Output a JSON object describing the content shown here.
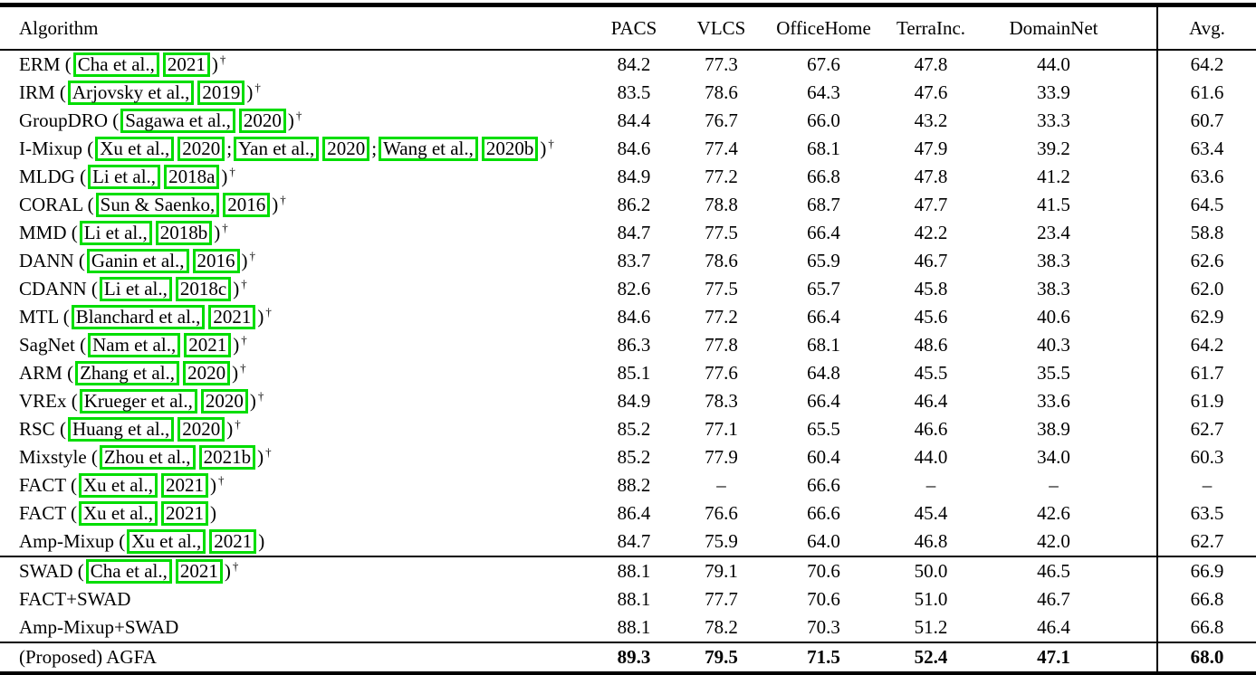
{
  "colors": {
    "citation_box": "#00dd00",
    "rule": "#000000",
    "background": "#ffffff",
    "text": "#000000"
  },
  "table": {
    "dagger_symbol": "†",
    "missing_value": "–",
    "header": [
      "Algorithm",
      "PACS",
      "VLCS",
      "OfficeHome",
      "TerraInc.",
      "DomainNet",
      "Avg."
    ],
    "rows": [
      {
        "algorithm": "ERM",
        "parts": [
          {
            "t": "text",
            "v": "ERM ("
          },
          {
            "t": "cite",
            "v": "Cha et al.,"
          },
          {
            "t": "cite",
            "v": "2021"
          },
          {
            "t": "text",
            "v": ")"
          }
        ],
        "dagger": true,
        "values": [
          "84.2",
          "77.3",
          "67.6",
          "47.8",
          "44.0",
          "64.2"
        ],
        "bold": false,
        "rule_above": false
      },
      {
        "algorithm": "IRM",
        "parts": [
          {
            "t": "text",
            "v": "IRM ("
          },
          {
            "t": "cite",
            "v": "Arjovsky et al.,"
          },
          {
            "t": "cite",
            "v": "2019"
          },
          {
            "t": "text",
            "v": ")"
          }
        ],
        "dagger": true,
        "values": [
          "83.5",
          "78.6",
          "64.3",
          "47.6",
          "33.9",
          "61.6"
        ],
        "bold": false,
        "rule_above": false
      },
      {
        "algorithm": "GroupDRO",
        "parts": [
          {
            "t": "text",
            "v": "GroupDRO ("
          },
          {
            "t": "cite",
            "v": "Sagawa et al.,"
          },
          {
            "t": "cite",
            "v": "2020"
          },
          {
            "t": "text",
            "v": ")"
          }
        ],
        "dagger": true,
        "values": [
          "84.4",
          "76.7",
          "66.0",
          "43.2",
          "33.3",
          "60.7"
        ],
        "bold": false,
        "rule_above": false
      },
      {
        "algorithm": "I-Mixup",
        "parts": [
          {
            "t": "text",
            "v": "I-Mixup ("
          },
          {
            "t": "cite",
            "v": "Xu et al.,"
          },
          {
            "t": "cite",
            "v": "2020"
          },
          {
            "t": "text",
            "v": ";"
          },
          {
            "t": "cite",
            "v": "Yan et al.,"
          },
          {
            "t": "cite",
            "v": "2020"
          },
          {
            "t": "text",
            "v": ";"
          },
          {
            "t": "cite",
            "v": "Wang et al.,"
          },
          {
            "t": "cite",
            "v": "2020b"
          },
          {
            "t": "text",
            "v": ")"
          }
        ],
        "dagger": true,
        "values": [
          "84.6",
          "77.4",
          "68.1",
          "47.9",
          "39.2",
          "63.4"
        ],
        "bold": false,
        "rule_above": false
      },
      {
        "algorithm": "MLDG",
        "parts": [
          {
            "t": "text",
            "v": "MLDG ("
          },
          {
            "t": "cite",
            "v": "Li et al.,"
          },
          {
            "t": "cite",
            "v": "2018a"
          },
          {
            "t": "text",
            "v": ")"
          }
        ],
        "dagger": true,
        "values": [
          "84.9",
          "77.2",
          "66.8",
          "47.8",
          "41.2",
          "63.6"
        ],
        "bold": false,
        "rule_above": false
      },
      {
        "algorithm": "CORAL",
        "parts": [
          {
            "t": "text",
            "v": "CORAL ("
          },
          {
            "t": "cite",
            "v": "Sun & Saenko,"
          },
          {
            "t": "cite",
            "v": "2016"
          },
          {
            "t": "text",
            "v": ")"
          }
        ],
        "dagger": true,
        "values": [
          "86.2",
          "78.8",
          "68.7",
          "47.7",
          "41.5",
          "64.5"
        ],
        "bold": false,
        "rule_above": false
      },
      {
        "algorithm": "MMD",
        "parts": [
          {
            "t": "text",
            "v": "MMD ("
          },
          {
            "t": "cite",
            "v": "Li et al.,"
          },
          {
            "t": "cite",
            "v": "2018b"
          },
          {
            "t": "text",
            "v": ")"
          }
        ],
        "dagger": true,
        "values": [
          "84.7",
          "77.5",
          "66.4",
          "42.2",
          "23.4",
          "58.8"
        ],
        "bold": false,
        "rule_above": false
      },
      {
        "algorithm": "DANN",
        "parts": [
          {
            "t": "text",
            "v": "DANN ("
          },
          {
            "t": "cite",
            "v": "Ganin et al.,"
          },
          {
            "t": "cite",
            "v": "2016"
          },
          {
            "t": "text",
            "v": ")"
          }
        ],
        "dagger": true,
        "values": [
          "83.7",
          "78.6",
          "65.9",
          "46.7",
          "38.3",
          "62.6"
        ],
        "bold": false,
        "rule_above": false
      },
      {
        "algorithm": "CDANN",
        "parts": [
          {
            "t": "text",
            "v": "CDANN ("
          },
          {
            "t": "cite",
            "v": "Li et al.,"
          },
          {
            "t": "cite",
            "v": "2018c"
          },
          {
            "t": "text",
            "v": ")"
          }
        ],
        "dagger": true,
        "values": [
          "82.6",
          "77.5",
          "65.7",
          "45.8",
          "38.3",
          "62.0"
        ],
        "bold": false,
        "rule_above": false
      },
      {
        "algorithm": "MTL",
        "parts": [
          {
            "t": "text",
            "v": "MTL ("
          },
          {
            "t": "cite",
            "v": "Blanchard et al.,"
          },
          {
            "t": "cite",
            "v": "2021"
          },
          {
            "t": "text",
            "v": ")"
          }
        ],
        "dagger": true,
        "values": [
          "84.6",
          "77.2",
          "66.4",
          "45.6",
          "40.6",
          "62.9"
        ],
        "bold": false,
        "rule_above": false
      },
      {
        "algorithm": "SagNet",
        "parts": [
          {
            "t": "text",
            "v": "SagNet ("
          },
          {
            "t": "cite",
            "v": "Nam et al.,"
          },
          {
            "t": "cite",
            "v": "2021"
          },
          {
            "t": "text",
            "v": ")"
          }
        ],
        "dagger": true,
        "values": [
          "86.3",
          "77.8",
          "68.1",
          "48.6",
          "40.3",
          "64.2"
        ],
        "bold": false,
        "rule_above": false
      },
      {
        "algorithm": "ARM",
        "parts": [
          {
            "t": "text",
            "v": "ARM ("
          },
          {
            "t": "cite",
            "v": "Zhang et al.,"
          },
          {
            "t": "cite",
            "v": "2020"
          },
          {
            "t": "text",
            "v": ")"
          }
        ],
        "dagger": true,
        "values": [
          "85.1",
          "77.6",
          "64.8",
          "45.5",
          "35.5",
          "61.7"
        ],
        "bold": false,
        "rule_above": false
      },
      {
        "algorithm": "VREx",
        "parts": [
          {
            "t": "text",
            "v": "VREx ("
          },
          {
            "t": "cite",
            "v": "Krueger et al.,"
          },
          {
            "t": "cite",
            "v": "2020"
          },
          {
            "t": "text",
            "v": ")"
          }
        ],
        "dagger": true,
        "values": [
          "84.9",
          "78.3",
          "66.4",
          "46.4",
          "33.6",
          "61.9"
        ],
        "bold": false,
        "rule_above": false
      },
      {
        "algorithm": "RSC",
        "parts": [
          {
            "t": "text",
            "v": "RSC ("
          },
          {
            "t": "cite",
            "v": "Huang et al.,"
          },
          {
            "t": "cite",
            "v": "2020"
          },
          {
            "t": "text",
            "v": ")"
          }
        ],
        "dagger": true,
        "values": [
          "85.2",
          "77.1",
          "65.5",
          "46.6",
          "38.9",
          "62.7"
        ],
        "bold": false,
        "rule_above": false
      },
      {
        "algorithm": "Mixstyle",
        "parts": [
          {
            "t": "text",
            "v": "Mixstyle ("
          },
          {
            "t": "cite",
            "v": "Zhou et al.,"
          },
          {
            "t": "cite",
            "v": "2021b"
          },
          {
            "t": "text",
            "v": ")"
          }
        ],
        "dagger": true,
        "values": [
          "85.2",
          "77.9",
          "60.4",
          "44.0",
          "34.0",
          "60.3"
        ],
        "bold": false,
        "rule_above": false
      },
      {
        "algorithm": "FACT",
        "parts": [
          {
            "t": "text",
            "v": "FACT ("
          },
          {
            "t": "cite",
            "v": "Xu et al.,"
          },
          {
            "t": "cite",
            "v": "2021"
          },
          {
            "t": "text",
            "v": ")"
          }
        ],
        "dagger": true,
        "values": [
          "88.2",
          "–",
          "66.6",
          "–",
          "–",
          "–"
        ],
        "bold": false,
        "rule_above": false
      },
      {
        "algorithm": "FACT",
        "parts": [
          {
            "t": "text",
            "v": "FACT ("
          },
          {
            "t": "cite",
            "v": "Xu et al.,"
          },
          {
            "t": "cite",
            "v": "2021"
          },
          {
            "t": "text",
            "v": ")"
          }
        ],
        "dagger": false,
        "values": [
          "86.4",
          "76.6",
          "66.6",
          "45.4",
          "42.6",
          "63.5"
        ],
        "bold": false,
        "rule_above": false
      },
      {
        "algorithm": "Amp-Mixup",
        "parts": [
          {
            "t": "text",
            "v": "Amp-Mixup ("
          },
          {
            "t": "cite",
            "v": "Xu et al.,"
          },
          {
            "t": "cite",
            "v": "2021"
          },
          {
            "t": "text",
            "v": ")"
          }
        ],
        "dagger": false,
        "values": [
          "84.7",
          "75.9",
          "64.0",
          "46.8",
          "42.0",
          "62.7"
        ],
        "bold": false,
        "rule_above": false
      },
      {
        "algorithm": "SWAD",
        "parts": [
          {
            "t": "text",
            "v": "SWAD ("
          },
          {
            "t": "cite",
            "v": "Cha et al.,"
          },
          {
            "t": "cite",
            "v": "2021"
          },
          {
            "t": "text",
            "v": ")"
          }
        ],
        "dagger": true,
        "values": [
          "88.1",
          "79.1",
          "70.6",
          "50.0",
          "46.5",
          "66.9"
        ],
        "bold": false,
        "rule_above": true
      },
      {
        "algorithm": "FACT+SWAD",
        "parts": [
          {
            "t": "text",
            "v": "FACT+SWAD"
          }
        ],
        "dagger": false,
        "values": [
          "88.1",
          "77.7",
          "70.6",
          "51.0",
          "46.7",
          "66.8"
        ],
        "bold": false,
        "rule_above": false
      },
      {
        "algorithm": "Amp-Mixup+SWAD",
        "parts": [
          {
            "t": "text",
            "v": "Amp-Mixup+SWAD"
          }
        ],
        "dagger": false,
        "values": [
          "88.1",
          "78.2",
          "70.3",
          "51.2",
          "46.4",
          "66.8"
        ],
        "bold": false,
        "rule_above": false
      },
      {
        "algorithm": "(Proposed) AGFA",
        "parts": [
          {
            "t": "text",
            "v": "(Proposed) AGFA"
          }
        ],
        "dagger": false,
        "values": [
          "89.3",
          "79.5",
          "71.5",
          "52.4",
          "47.1",
          "68.0"
        ],
        "bold": true,
        "rule_above": true
      }
    ]
  }
}
